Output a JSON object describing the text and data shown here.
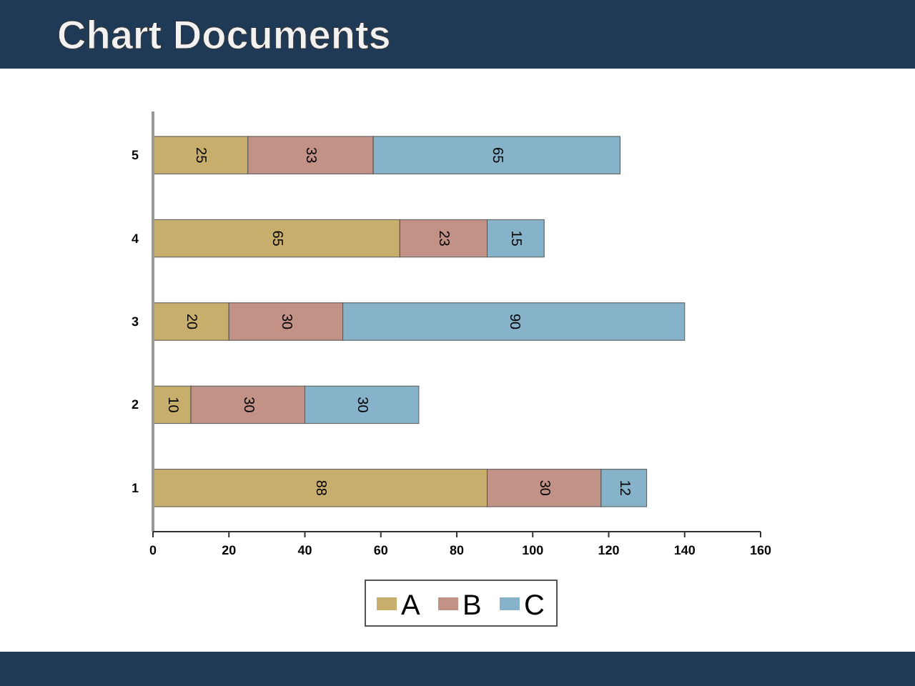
{
  "chart_data": {
    "type": "bar",
    "title": "Chart Documents",
    "orientation": "horizontal",
    "stacked": true,
    "categories": [
      "5",
      "4",
      "3",
      "2",
      "1"
    ],
    "series": [
      {
        "name": "A",
        "color": "#c8ae6c",
        "values": [
          25,
          65,
          20,
          10,
          88
        ]
      },
      {
        "name": "B",
        "color": "#c39287",
        "values": [
          33,
          23,
          30,
          30,
          30
        ]
      },
      {
        "name": "C",
        "color": "#86b3c9",
        "values": [
          65,
          15,
          90,
          30,
          12
        ]
      }
    ],
    "xlim": [
      0,
      160
    ],
    "xticks": [
      0,
      20,
      40,
      60,
      80,
      100,
      120,
      140,
      160
    ],
    "data_labels": true,
    "legend": "bottom",
    "grid": false
  }
}
